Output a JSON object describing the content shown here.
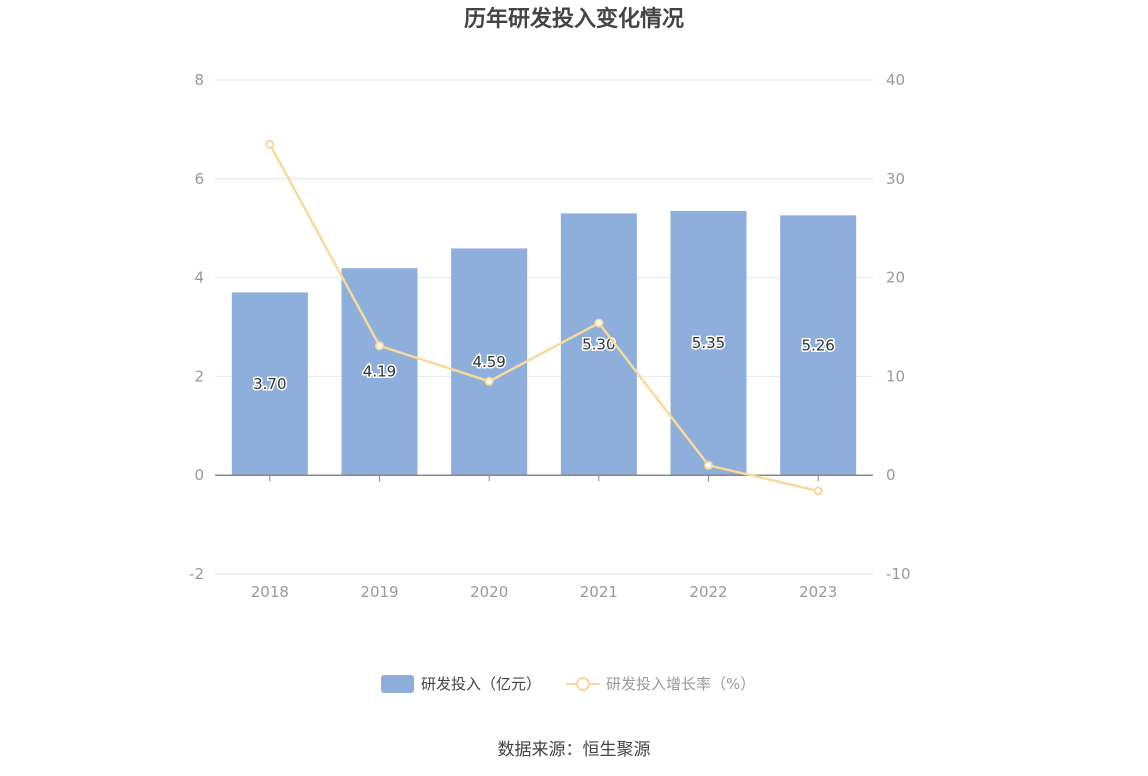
{
  "chart_data": {
    "type": "bar",
    "title": "历年研发投入变化情况",
    "categories": [
      "2018",
      "2019",
      "2020",
      "2021",
      "2022",
      "2023"
    ],
    "series": [
      {
        "name": "研发投入（亿元）",
        "type": "bar",
        "axis": "left",
        "color": "#8eaedb",
        "values": [
          3.7,
          4.19,
          4.59,
          5.3,
          5.35,
          5.26
        ],
        "labels": [
          "3.70",
          "4.19",
          "4.59",
          "5.30",
          "5.35",
          "5.26"
        ]
      },
      {
        "name": "研发投入增长率（%）",
        "type": "line",
        "axis": "right",
        "color": "#fbd99b",
        "values": [
          33.5,
          13.1,
          9.5,
          15.4,
          1.0,
          -1.6
        ]
      }
    ],
    "y_left": {
      "min": -2,
      "max": 8,
      "ticks": [
        "8",
        "6",
        "4",
        "2",
        "0",
        "-2"
      ]
    },
    "y_right": {
      "min": -10,
      "max": 40,
      "ticks": [
        "40",
        "30",
        "20",
        "10",
        "0",
        "-10"
      ]
    },
    "grid": true,
    "legend_position": "bottom"
  },
  "source_text": "数据来源：恒生聚源"
}
